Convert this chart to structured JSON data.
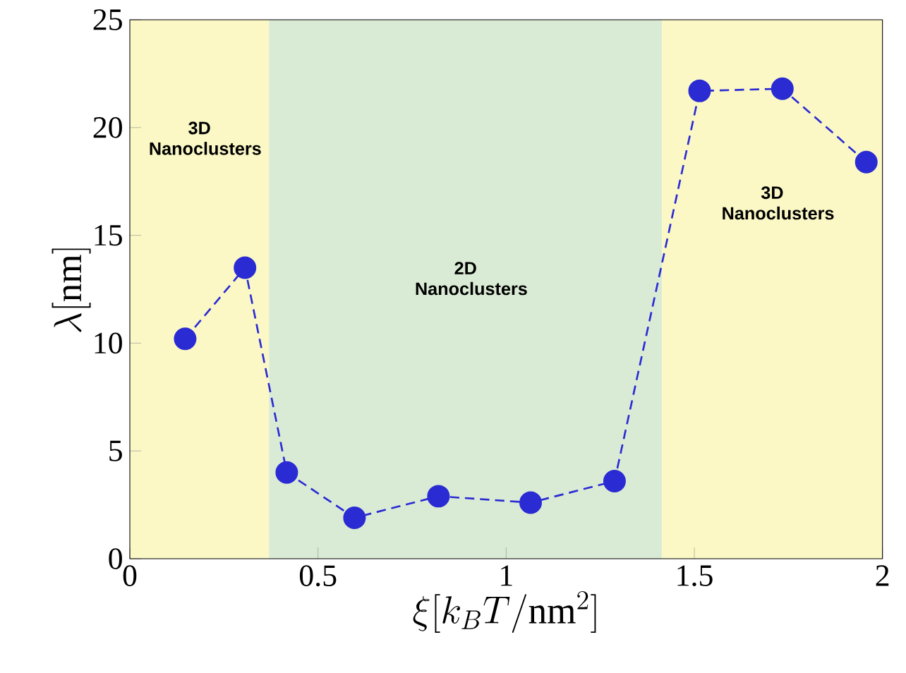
{
  "chart_data": {
    "type": "line",
    "xlabel": "\\xi[k_BT/\\mathrm{nm}^2]",
    "ylabel": "\\lambda[\\mathrm{nm}]",
    "x": [
      0.147,
      0.306,
      0.417,
      0.597,
      0.82,
      1.065,
      1.288,
      1.514,
      1.734,
      1.957
    ],
    "series": [
      {
        "color": "#2b2bd4",
        "values": [
          10.2,
          13.5,
          4.0,
          1.9,
          2.9,
          2.6,
          3.6,
          21.7,
          21.8,
          18.4
        ]
      }
    ],
    "marker": "circle",
    "line_style": "dashed",
    "xlim": [
      0,
      2
    ],
    "ylim": [
      0,
      25
    ],
    "xticks": [
      0,
      0.5,
      1,
      1.5,
      2
    ],
    "yticks": [
      0,
      5,
      10,
      15,
      20,
      25
    ],
    "bands": [
      {
        "axis": "x",
        "from": 0,
        "to": 0.37,
        "color": "#fbf8c6",
        "label": "3D Nanoclusters"
      },
      {
        "axis": "x",
        "from": 0.37,
        "to": 1.414,
        "color": "#daebd5",
        "label": "2D Nanoclusters"
      },
      {
        "axis": "x",
        "from": 1.414,
        "to": 2,
        "color": "#fbf8c6",
        "label": "3D Nanoclusters"
      }
    ],
    "grid": false
  }
}
